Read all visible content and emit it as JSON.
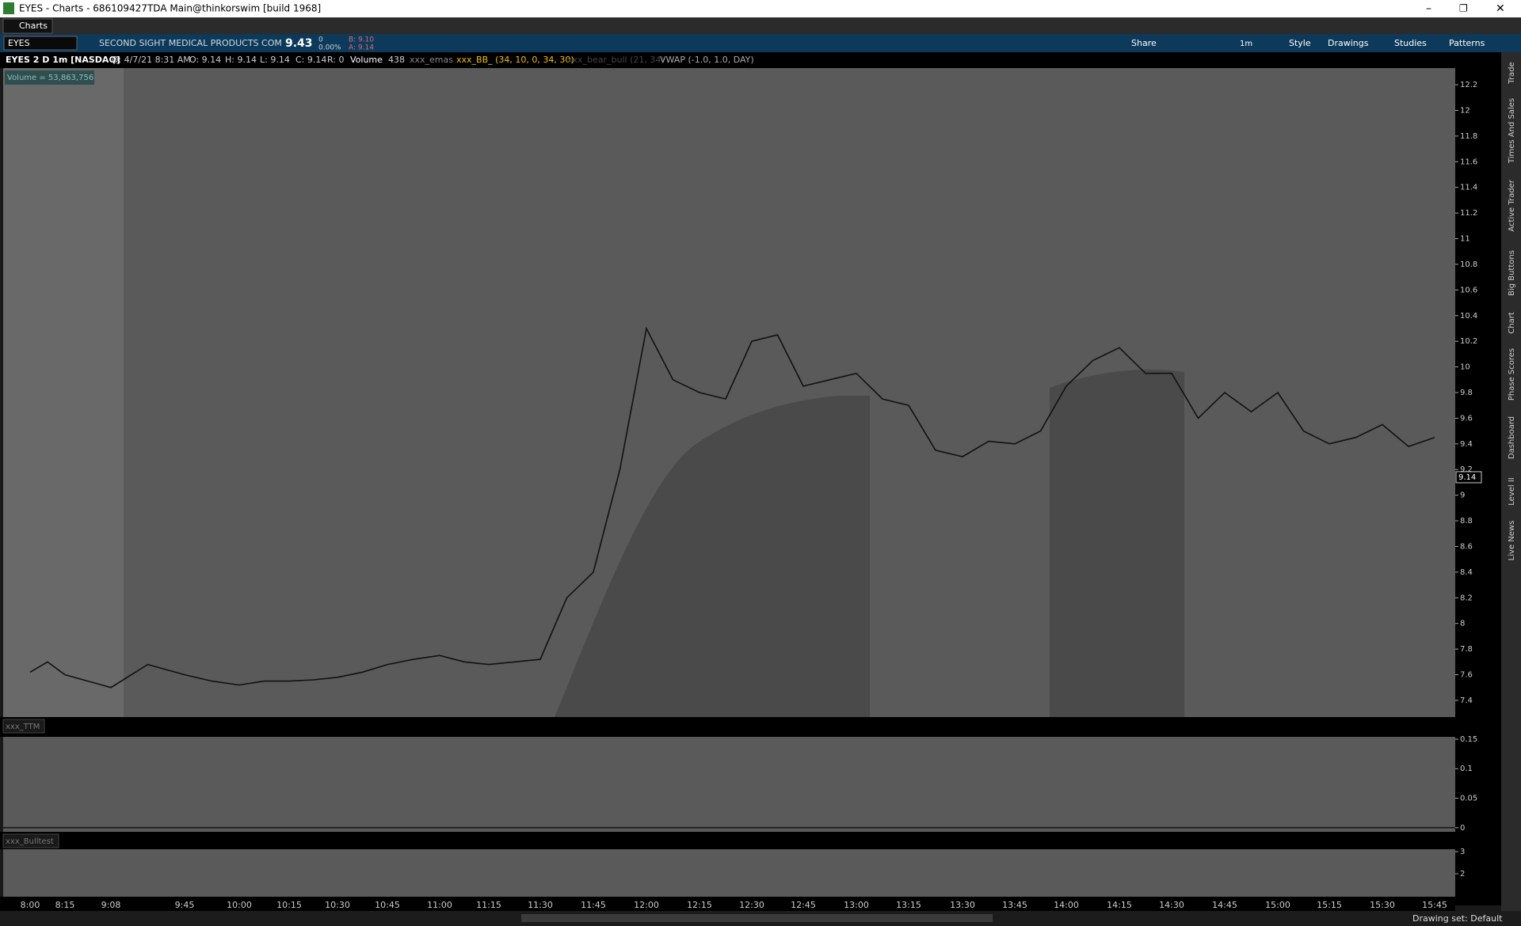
{
  "window": {
    "title": "EYES - Charts - 686109427TDA Main@thinkorswim [build 1968]",
    "tab": "Charts"
  },
  "toolbar": {
    "symbol": "EYES",
    "company": "SECOND SIGHT MEDICAL PRODUCTS COM",
    "last": "9.43",
    "change": "0",
    "change_pct": "0.00%",
    "bid": "B: 9.10",
    "ask": "A: 9.14",
    "aggregation": "1m",
    "buttons": [
      "Share",
      "Style",
      "Drawings",
      "Studies",
      "Patterns"
    ]
  },
  "info_bar": [
    "EYES 2 D 1m [NASDAQ]",
    "D: 4/7/21 8:31 AM",
    "O: 9.14",
    "H: 9.14",
    "L: 9.14",
    "C: 9.14",
    "R: 0",
    "Volume",
    "438",
    "xxx_emas",
    "xxx_BB_ (34, 10, 0, 34, 30)",
    "xxx_bear_bull (21, 34)",
    "VWAP (-1.0, 1.0, DAY)"
  ],
  "volume_label": "Volume = 53,863,756",
  "price_pane": {
    "ylim": [
      7.27,
      12.33
    ],
    "yticks": [
      12.2,
      12,
      11.8,
      11.6,
      11.4,
      11.2,
      11,
      10.8,
      10.6,
      10.4,
      10.2,
      10,
      9.8,
      9.6,
      9.4,
      9.2,
      9,
      8.8,
      8.6,
      8.4,
      8.2,
      8,
      7.8,
      7.6,
      7.4
    ],
    "last_price": 9.14,
    "price_path": [
      7.62,
      7.7,
      7.6,
      7.55,
      7.5,
      7.68,
      7.6,
      7.55,
      7.52,
      7.55,
      7.55,
      7.56,
      7.58,
      7.62,
      7.68,
      7.72,
      7.75,
      7.7,
      7.68,
      7.7,
      7.72,
      8.2,
      8.4,
      9.2,
      10.3,
      9.9,
      9.8,
      9.75,
      10.2,
      10.25,
      9.85,
      9.9,
      9.95,
      9.75,
      9.7,
      9.35,
      9.3,
      9.42,
      9.4,
      9.5,
      9.85,
      10.05,
      10.15,
      9.95,
      9.95,
      9.6,
      9.8,
      9.65,
      9.8,
      9.5,
      9.4,
      9.45,
      9.55,
      9.38,
      9.45
    ]
  },
  "ttm_pane": {
    "label": "xxx_TTM",
    "ylim": [
      -0.007,
      0.154
    ],
    "yticks": [
      0.15,
      0.1,
      0.05,
      0
    ]
  },
  "bull_pane": {
    "label": "xxx_Bulltest",
    "ylim": [
      0.96,
      3.11
    ],
    "yticks": [
      3,
      2
    ]
  },
  "time_axis": [
    "8:00",
    "8:15",
    "9:08",
    "9:45",
    "10:00",
    "10:15",
    "10:30",
    "10:45",
    "11:00",
    "11:15",
    "11:30",
    "11:45",
    "12:00",
    "12:15",
    "12:30",
    "12:45",
    "13:00",
    "13:15",
    "13:30",
    "13:45",
    "14:00",
    "14:15",
    "14:30",
    "14:45",
    "15:00",
    "15:15",
    "15:30",
    "15:45"
  ],
  "status": "Drawing set: Default",
  "side_tabs": [
    "Trade",
    "Times And Sales",
    "Active Trader",
    "Big Buttons",
    "Chart",
    "Phase Scores",
    "Dashboard",
    "Level II",
    "Live News"
  ]
}
